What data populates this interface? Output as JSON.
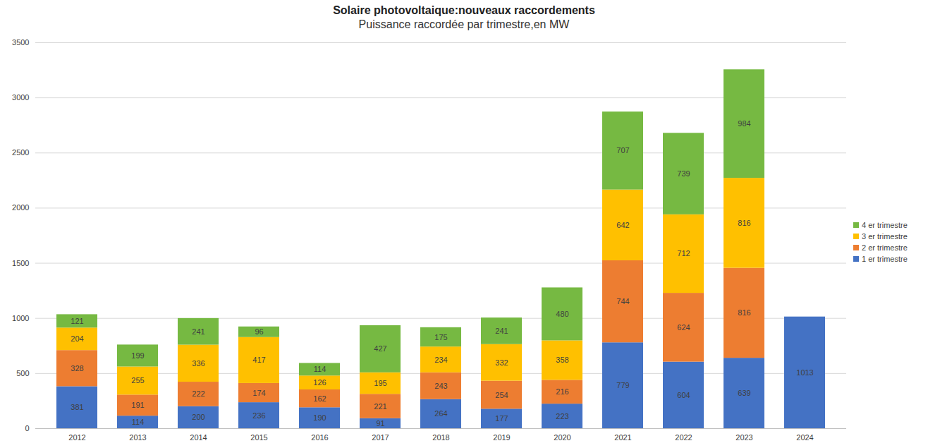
{
  "chart_data": {
    "type": "bar",
    "title": "Solaire photovoltaique:nouveaux raccordements",
    "subtitle": "Puissance raccordée par trimestre,en MW",
    "categories": [
      "2012",
      "2013",
      "2014",
      "2015",
      "2016",
      "2017",
      "2018",
      "2019",
      "2020",
      "2021",
      "2022",
      "2023",
      "2024"
    ],
    "series": [
      {
        "name": "1 er trimestre",
        "color": "#4472c4",
        "values": [
          381,
          114,
          200,
          236,
          190,
          91,
          264,
          177,
          223,
          779,
          604,
          639,
          1013
        ]
      },
      {
        "name": "2 er trimestre",
        "color": "#ed7d31",
        "values": [
          328,
          191,
          222,
          174,
          162,
          221,
          243,
          254,
          216,
          744,
          624,
          816,
          null
        ]
      },
      {
        "name": "3 er trimestre",
        "color": "#ffc000",
        "values": [
          204,
          255,
          336,
          417,
          126,
          195,
          234,
          332,
          358,
          642,
          712,
          816,
          null
        ]
      },
      {
        "name": "4 er trimestre",
        "color": "#76b942",
        "values": [
          121,
          199,
          241,
          96,
          114,
          427,
          175,
          241,
          480,
          707,
          739,
          984,
          null
        ]
      }
    ],
    "ylim": [
      0,
      3500
    ],
    "yticks": [
      0,
      500,
      1000,
      1500,
      2000,
      2500,
      3000,
      3500
    ],
    "grid": true,
    "stacked": true,
    "data_labels": true,
    "legend": "right"
  }
}
